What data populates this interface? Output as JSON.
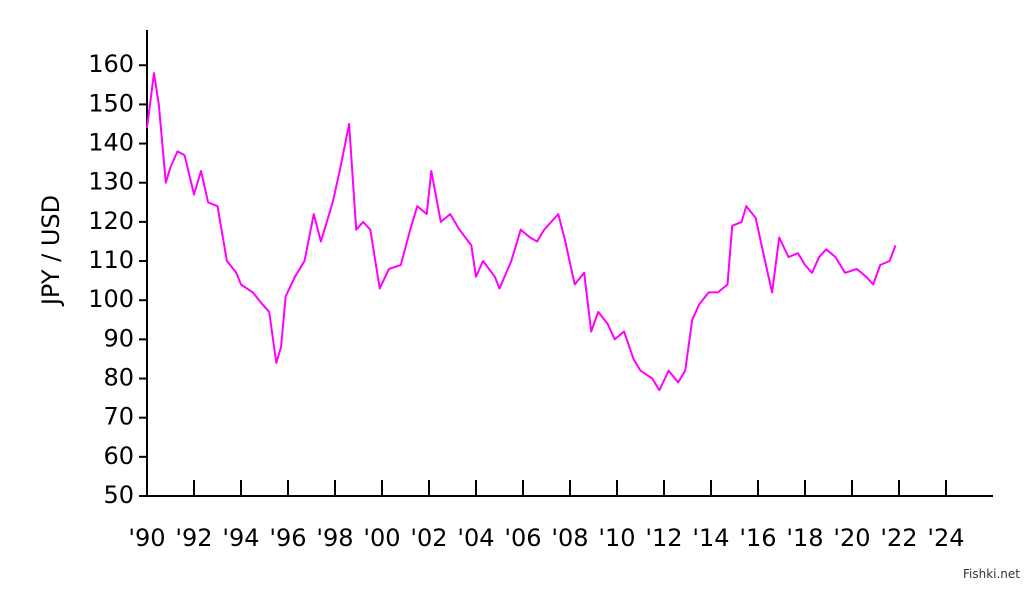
{
  "chart_data": {
    "type": "line",
    "y_label": "JPY / USD",
    "watermark": "Fishki.net",
    "color": "#ff00ff",
    "xlim": [
      1990,
      2026
    ],
    "ylim": [
      50,
      169
    ],
    "yticks": [
      50,
      60,
      70,
      80,
      90,
      100,
      110,
      120,
      130,
      140,
      150,
      160
    ],
    "xticks": [
      {
        "value": 1990,
        "label": "'90"
      },
      {
        "value": 1992,
        "label": "'92"
      },
      {
        "value": 1994,
        "label": "'94"
      },
      {
        "value": 1996,
        "label": "'96"
      },
      {
        "value": 1998,
        "label": "'98"
      },
      {
        "value": 2000,
        "label": "'00"
      },
      {
        "value": 2002,
        "label": "'02"
      },
      {
        "value": 2004,
        "label": "'04"
      },
      {
        "value": 2006,
        "label": "'06"
      },
      {
        "value": 2008,
        "label": "'08"
      },
      {
        "value": 2010,
        "label": "'10"
      },
      {
        "value": 2012,
        "label": "'12"
      },
      {
        "value": 2014,
        "label": "'14"
      },
      {
        "value": 2016,
        "label": "'16"
      },
      {
        "value": 2018,
        "label": "'18"
      },
      {
        "value": 2020,
        "label": "'20"
      },
      {
        "value": 2022,
        "label": "'22"
      },
      {
        "value": 2024,
        "label": "'24"
      }
    ],
    "x": [
      1990.0,
      1990.3,
      1990.5,
      1990.8,
      1991.0,
      1991.3,
      1991.6,
      1992.0,
      1992.3,
      1992.6,
      1993.0,
      1993.4,
      1993.8,
      1994.0,
      1994.5,
      1994.9,
      1995.2,
      1995.5,
      1995.7,
      1995.9,
      1996.3,
      1996.7,
      1997.1,
      1997.4,
      1997.9,
      1998.2,
      1998.6,
      1998.9,
      1999.2,
      1999.5,
      1999.9,
      2000.3,
      2000.8,
      2001.2,
      2001.5,
      2001.9,
      2002.1,
      2002.5,
      2002.9,
      2003.3,
      2003.8,
      2004.0,
      2004.3,
      2004.8,
      2005.0,
      2005.5,
      2005.9,
      2006.3,
      2006.6,
      2006.9,
      2007.5,
      2007.8,
      2008.2,
      2008.6,
      2008.9,
      2009.2,
      2009.6,
      2009.9,
      2010.3,
      2010.7,
      2011.0,
      2011.5,
      2011.8,
      2012.2,
      2012.6,
      2012.9,
      2013.2,
      2013.5,
      2013.9,
      2014.3,
      2014.7,
      2014.9,
      2015.3,
      2015.5,
      2015.9,
      2016.3,
      2016.6,
      2016.9,
      2017.3,
      2017.7,
      2018.0,
      2018.3,
      2018.6,
      2018.9,
      2019.3,
      2019.7,
      2020.2,
      2020.6,
      2020.9,
      2021.2,
      2021.6,
      2021.85
    ],
    "values": [
      144,
      158,
      150,
      130,
      134,
      138,
      137,
      127,
      133,
      125,
      124,
      110,
      107,
      104,
      102,
      99,
      97,
      84,
      88,
      101,
      106,
      110,
      122,
      115,
      125,
      133,
      145,
      118,
      120,
      118,
      103,
      108,
      109,
      118,
      124,
      122,
      133,
      120,
      122,
      118,
      114,
      106,
      110,
      106,
      103,
      110,
      118,
      116,
      115,
      118,
      122,
      115,
      104,
      107,
      92,
      97,
      94,
      90,
      92,
      85,
      82,
      80,
      77,
      82,
      79,
      82,
      95,
      99,
      102,
      102,
      104,
      119,
      120,
      124,
      121,
      110,
      102,
      116,
      111,
      112,
      109,
      107,
      111,
      113,
      111,
      107,
      108,
      106,
      104,
      109,
      110,
      114
    ]
  }
}
